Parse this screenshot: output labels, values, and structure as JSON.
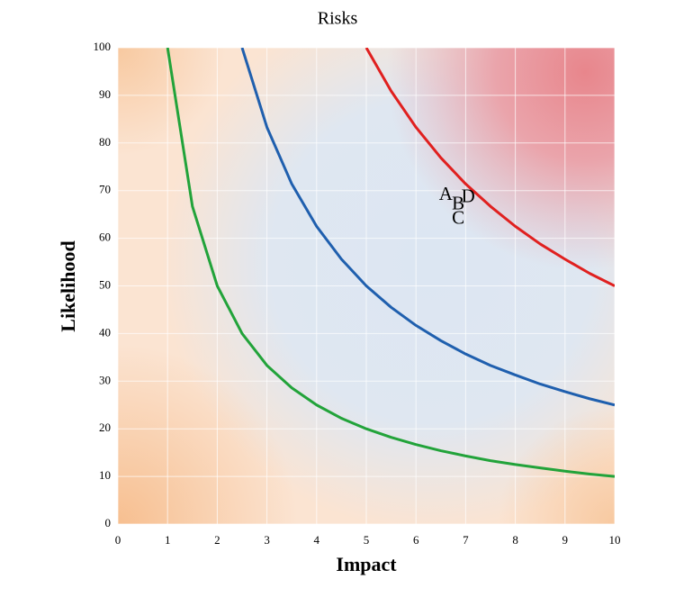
{
  "chart_data": {
    "type": "line",
    "title": "Risks",
    "x_label": "Impact",
    "y_label": "Likelihood",
    "xlim": [
      0,
      10
    ],
    "xticks": [
      0,
      1,
      2,
      3,
      4,
      5,
      6,
      7,
      8,
      9,
      10
    ],
    "ylim": [
      0,
      100
    ],
    "yticks": [
      0,
      10,
      20,
      30,
      40,
      50,
      60,
      70,
      80,
      90,
      100
    ],
    "grid": true,
    "series": [
      {
        "color": "#22a33a",
        "x": [
          1,
          1.5,
          2,
          2.5,
          3,
          3.5,
          4,
          4.5,
          5,
          5.5,
          6,
          6.5,
          7,
          7.5,
          8,
          8.5,
          9,
          9.5,
          10
        ],
        "values": [
          100,
          66.7,
          50,
          40,
          33.3,
          28.6,
          25,
          22.2,
          20,
          18.2,
          16.7,
          15.4,
          14.3,
          13.3,
          12.5,
          11.8,
          11.1,
          10.5,
          10
        ]
      },
      {
        "color": "#1f5fae",
        "x": [
          2.5,
          3,
          3.5,
          4,
          4.5,
          5,
          5.5,
          6,
          6.5,
          7,
          7.5,
          8,
          8.5,
          9,
          9.5,
          10
        ],
        "values": [
          100,
          83.3,
          71.4,
          62.5,
          55.6,
          50,
          45.5,
          41.7,
          38.5,
          35.7,
          33.3,
          31.3,
          29.4,
          27.8,
          26.3,
          25
        ]
      },
      {
        "color": "#e0201f",
        "x": [
          5,
          5.5,
          6,
          6.5,
          7,
          7.5,
          8,
          8.5,
          9,
          9.5,
          10
        ],
        "values": [
          100,
          90.9,
          83.3,
          76.9,
          71.4,
          66.7,
          62.5,
          58.8,
          55.6,
          52.6,
          50
        ]
      }
    ],
    "points": {
      "labels": [
        "A",
        "B",
        "C",
        "D"
      ],
      "x": [
        6.6,
        6.85,
        6.85,
        7.05
      ],
      "y": [
        69,
        67,
        64,
        68.5
      ]
    }
  }
}
